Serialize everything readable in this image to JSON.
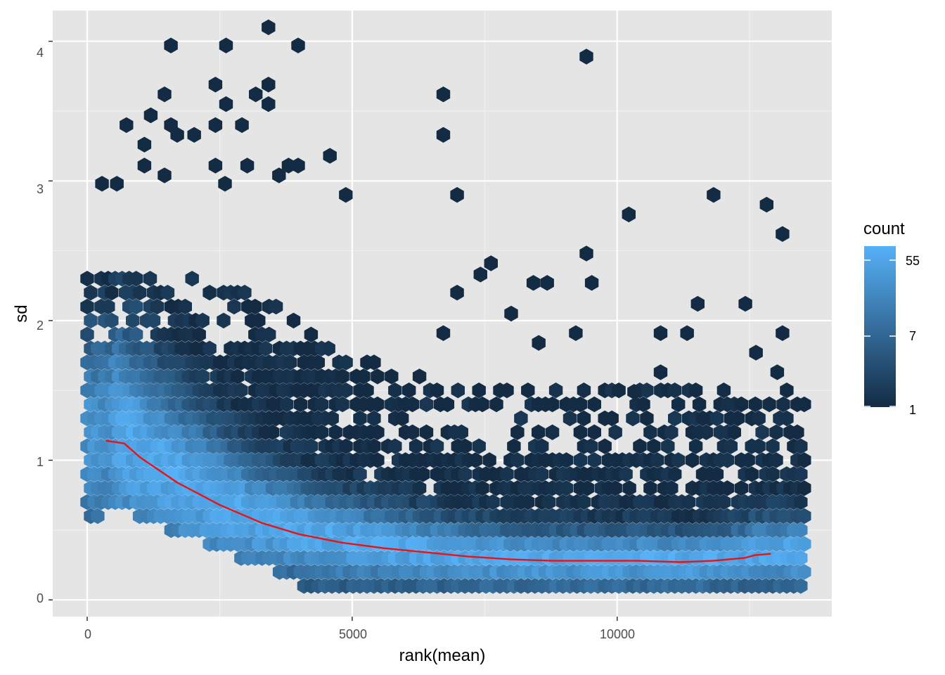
{
  "chart_data": {
    "type": "hexbin",
    "xlabel": "rank(mean)",
    "ylabel": "sd",
    "xlim": [
      -650,
      14050
    ],
    "ylim": [
      -0.12,
      4.22
    ],
    "x_ticks": [
      0,
      5000,
      10000
    ],
    "x_tick_labels": [
      "0",
      "5000",
      "10000"
    ],
    "y_ticks": [
      0,
      1,
      2,
      3,
      4
    ],
    "y_tick_labels": [
      "0",
      "1",
      "2",
      "3",
      "4"
    ],
    "grid": true,
    "background": "#e5e5e5",
    "legend": {
      "title": "count",
      "position": "right",
      "scale": "log",
      "breaks": [
        55,
        7,
        1
      ],
      "break_labels": [
        "55",
        "7",
        "1"
      ],
      "low_color": "#132b43",
      "high_color": "#56b1f7"
    },
    "fill_low": "#132b43",
    "fill_high": "#56b1f7",
    "trend_color": "#ee1111",
    "trend_line": {
      "x": [
        350,
        700,
        1000,
        1700,
        2500,
        3300,
        4000,
        4800,
        5600,
        6400,
        7200,
        8000,
        8800,
        9600,
        10400,
        11200,
        11800,
        12400,
        12600,
        12900
      ],
      "y": [
        1.14,
        1.12,
        1.02,
        0.84,
        0.68,
        0.55,
        0.47,
        0.41,
        0.37,
        0.34,
        0.31,
        0.29,
        0.28,
        0.28,
        0.28,
        0.27,
        0.28,
        0.3,
        0.32,
        0.33
      ]
    },
    "sparse_hexes": [
      [
        1580,
        3.97
      ],
      [
        2620,
        3.97
      ],
      [
        3420,
        4.1
      ],
      [
        3980,
        3.97
      ],
      [
        9420,
        3.89
      ],
      [
        2420,
        3.69
      ],
      [
        3420,
        3.69
      ],
      [
        1460,
        3.62
      ],
      [
        3180,
        3.62
      ],
      [
        6720,
        3.62
      ],
      [
        2620,
        3.55
      ],
      [
        3420,
        3.55
      ],
      [
        1200,
        3.47
      ],
      [
        1580,
        3.4
      ],
      [
        2420,
        3.4
      ],
      [
        2920,
        3.4
      ],
      [
        6720,
        3.33
      ],
      [
        1080,
        3.26
      ],
      [
        1700,
        3.33
      ],
      [
        2020,
        3.33
      ],
      [
        4580,
        3.18
      ],
      [
        1080,
        3.11
      ],
      [
        2420,
        3.11
      ],
      [
        3020,
        3.11
      ],
      [
        3800,
        3.11
      ],
      [
        3980,
        3.11
      ],
      [
        1460,
        3.04
      ],
      [
        2600,
        2.98
      ],
      [
        3620,
        3.04
      ],
      [
        6980,
        2.9
      ],
      [
        11820,
        2.9
      ],
      [
        4880,
        2.9
      ],
      [
        12820,
        2.83
      ],
      [
        10220,
        2.76
      ],
      [
        13120,
        2.62
      ],
      [
        8000,
        2.05
      ],
      [
        9420,
        2.48
      ],
      [
        8420,
        2.27
      ],
      [
        8680,
        2.27
      ],
      [
        9520,
        2.27
      ],
      [
        11520,
        2.12
      ],
      [
        12420,
        2.12
      ],
      [
        740,
        3.4
      ],
      [
        280,
        2.98
      ],
      [
        560,
        2.98
      ],
      [
        6720,
        1.91
      ],
      [
        9220,
        1.91
      ],
      [
        10820,
        1.91
      ],
      [
        11320,
        1.91
      ],
      [
        13120,
        1.91
      ],
      [
        6980,
        2.2
      ],
      [
        7420,
        2.33
      ],
      [
        7620,
        2.41
      ],
      [
        8520,
        1.84
      ],
      [
        10820,
        1.63
      ],
      [
        10320,
        1.49
      ],
      [
        12620,
        1.77
      ],
      [
        13020,
        1.63
      ]
    ]
  }
}
